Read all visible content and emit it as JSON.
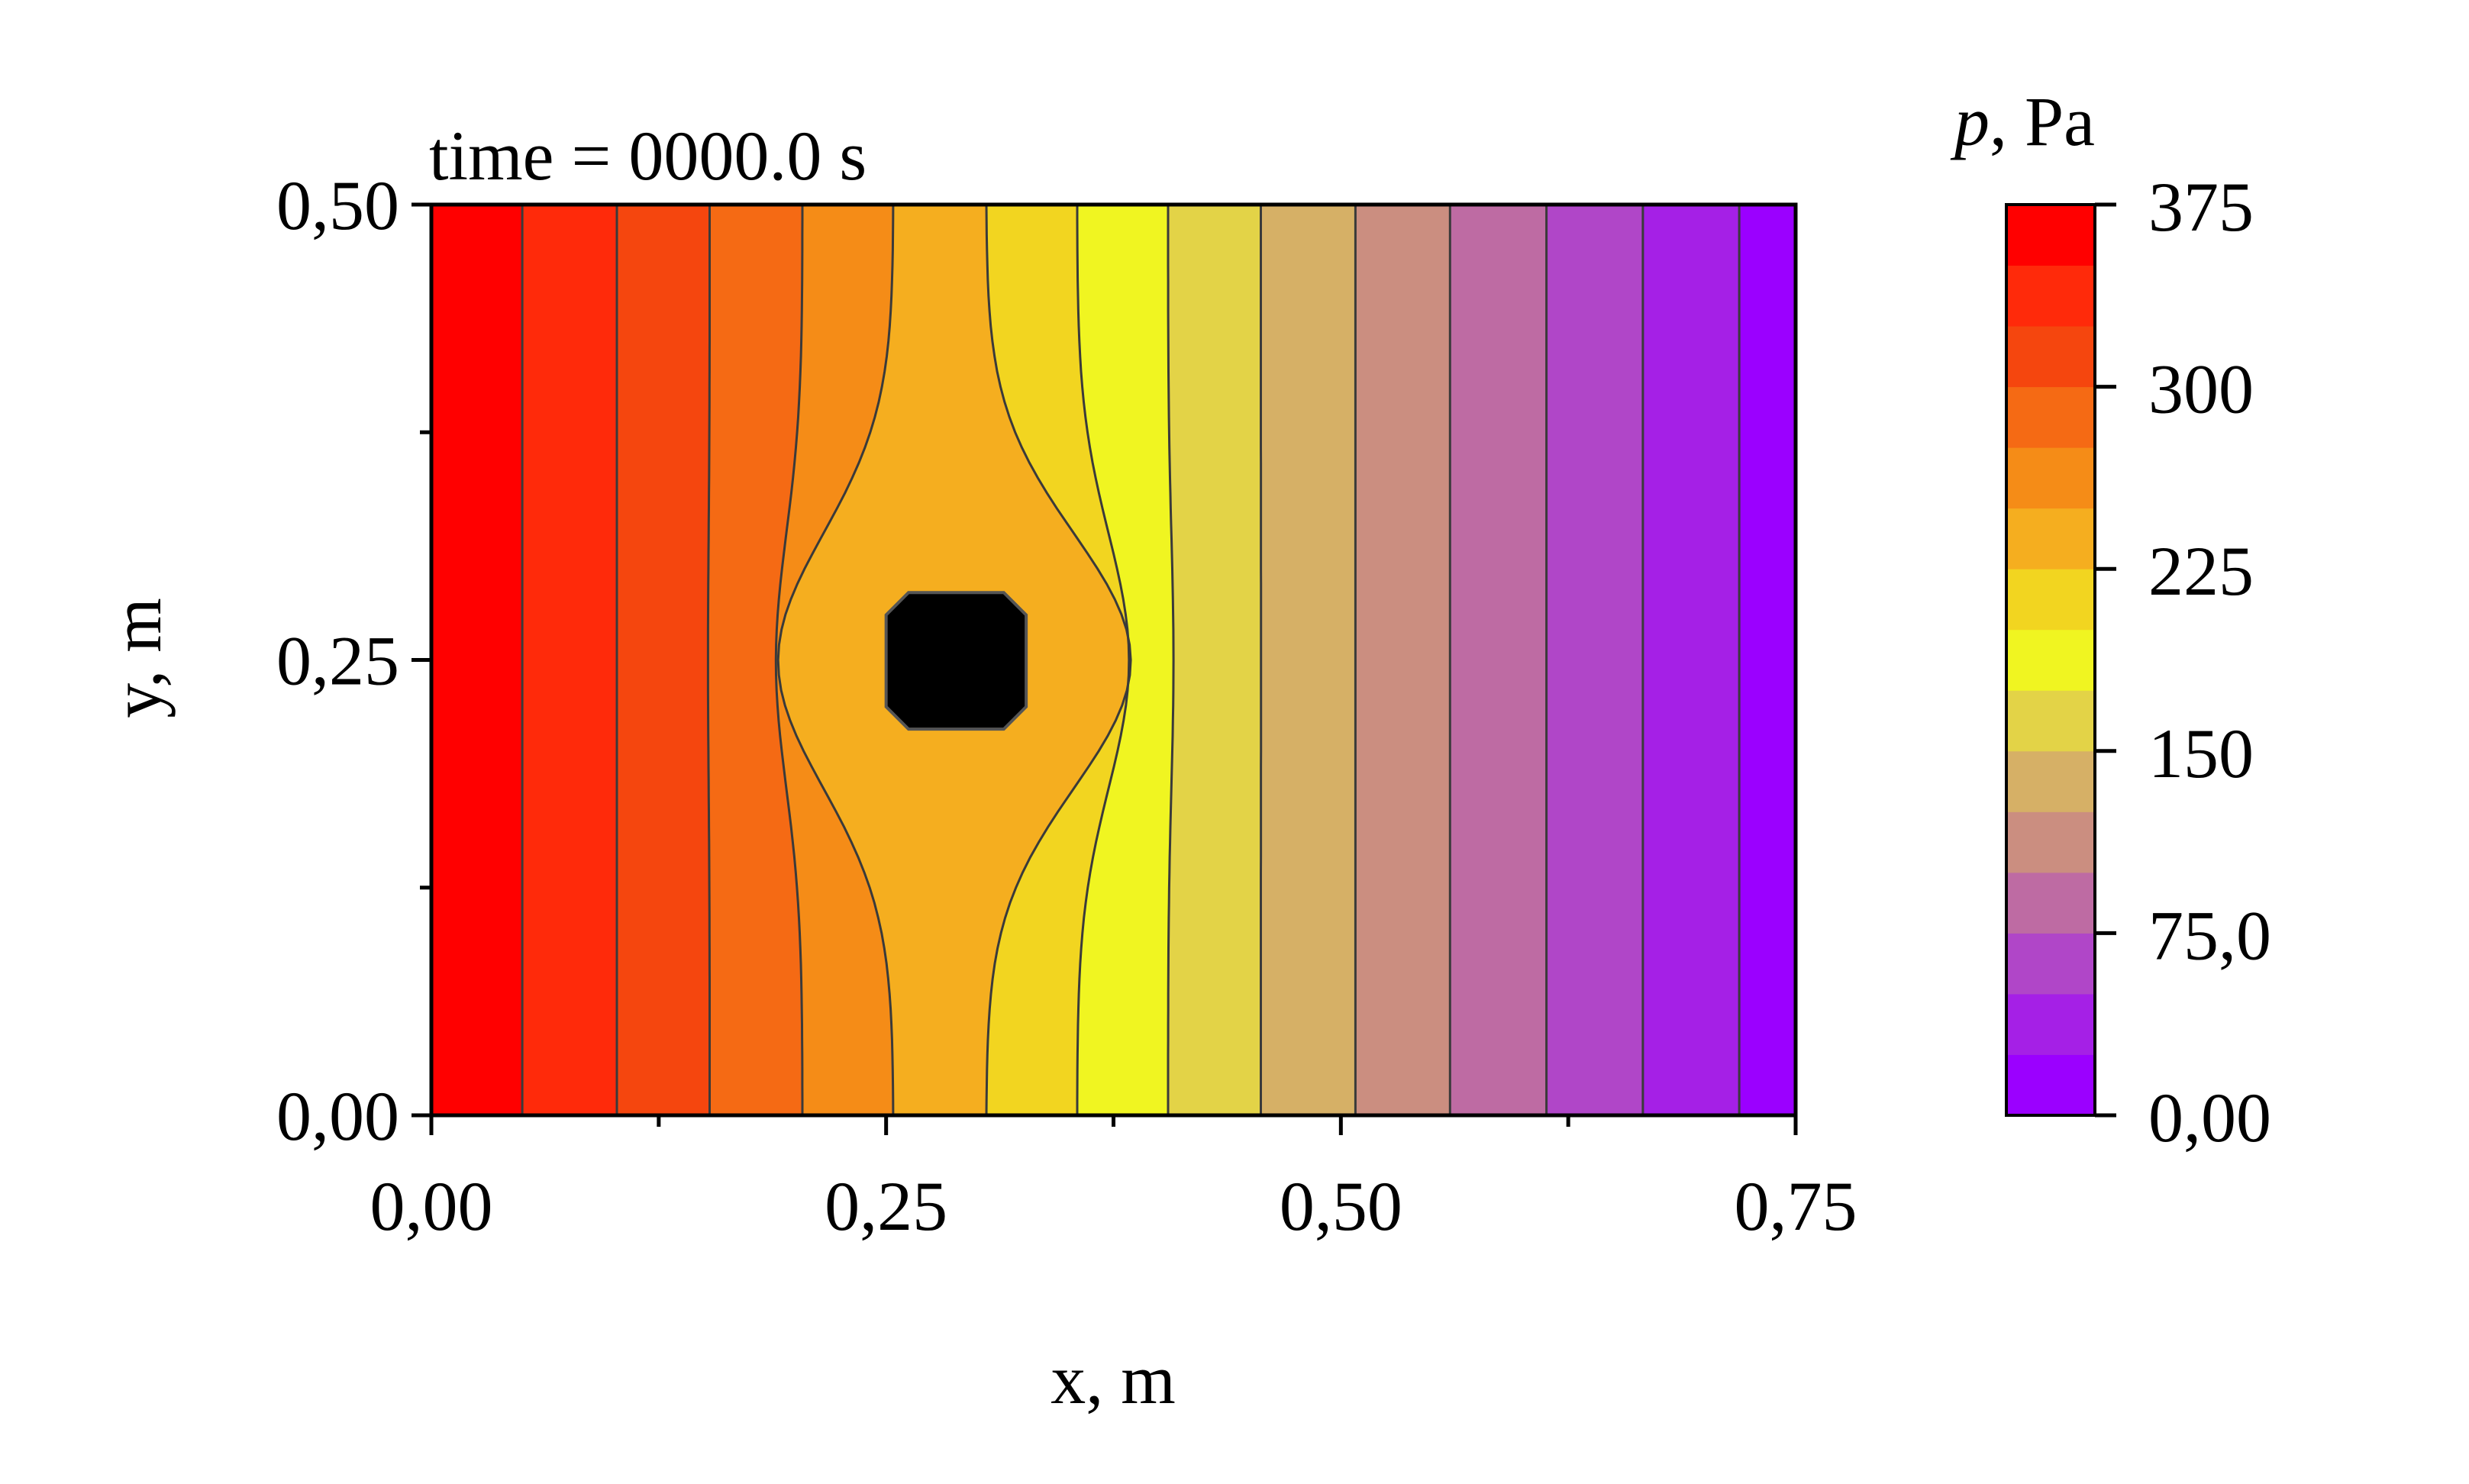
{
  "chart_data": {
    "type": "contour",
    "annotation": "time = 0000.0 s",
    "xlabel": "x, m",
    "ylabel": "y, m",
    "xlim": [
      0,
      0.75
    ],
    "ylim": [
      0,
      0.5
    ],
    "x_ticks": [
      "0,00",
      "0,25",
      "0,50",
      "0,75"
    ],
    "y_ticks": [
      "0,00",
      "0,25",
      "0,50"
    ],
    "colorbar": {
      "label_symbol": "p",
      "label_unit": ", Pa",
      "range": [
        0,
        375
      ],
      "levels": 15,
      "tick_values": [
        0,
        75,
        150,
        225,
        300,
        375
      ],
      "tick_labels": [
        "0,00",
        "75,0",
        "150",
        "225",
        "300",
        "375"
      ]
    },
    "contour_bands": [
      {
        "x_left": 0.0,
        "x_right": 0.05,
        "p_mid": 362.5
      },
      {
        "x_left": 0.05,
        "x_right": 0.102,
        "p_mid": 337.5
      },
      {
        "x_left": 0.102,
        "x_right": 0.153,
        "p_mid": 312.5
      },
      {
        "x_left": 0.153,
        "x_right": 0.204,
        "p_mid": 287.5
      },
      {
        "x_left": 0.204,
        "x_right": 0.254,
        "p_mid": 262.5
      },
      {
        "x_left": 0.254,
        "x_right": 0.305,
        "p_mid": 237.5
      },
      {
        "x_left": 0.305,
        "x_right": 0.355,
        "p_mid": 212.5
      },
      {
        "x_left": 0.355,
        "x_right": 0.405,
        "p_mid": 187.5
      },
      {
        "x_left": 0.405,
        "x_right": 0.456,
        "p_mid": 162.5
      },
      {
        "x_left": 0.456,
        "x_right": 0.508,
        "p_mid": 137.5
      },
      {
        "x_left": 0.508,
        "x_right": 0.56,
        "p_mid": 112.5
      },
      {
        "x_left": 0.56,
        "x_right": 0.613,
        "p_mid": 87.5
      },
      {
        "x_left": 0.613,
        "x_right": 0.666,
        "p_mid": 62.5
      },
      {
        "x_left": 0.666,
        "x_right": 0.719,
        "p_mid": 37.5
      },
      {
        "x_left": 0.719,
        "x_right": 0.75,
        "p_mid": 12.5
      }
    ],
    "obstacle": {
      "shape": "octagon",
      "x_range": [
        0.25,
        0.327
      ],
      "y_range": [
        0.212,
        0.287
      ],
      "color": "#000000"
    },
    "colors": [
      "#9b00ff",
      "#a520e6",
      "#b046c8",
      "#be6ba3",
      "#cb8e80",
      "#d6b066",
      "#e3d347",
      "#f0f521",
      "#f2d520",
      "#f5ae1f",
      "#f58c17",
      "#f56a14",
      "#f5460e",
      "#ff2a0a",
      "#ff0000"
    ]
  }
}
